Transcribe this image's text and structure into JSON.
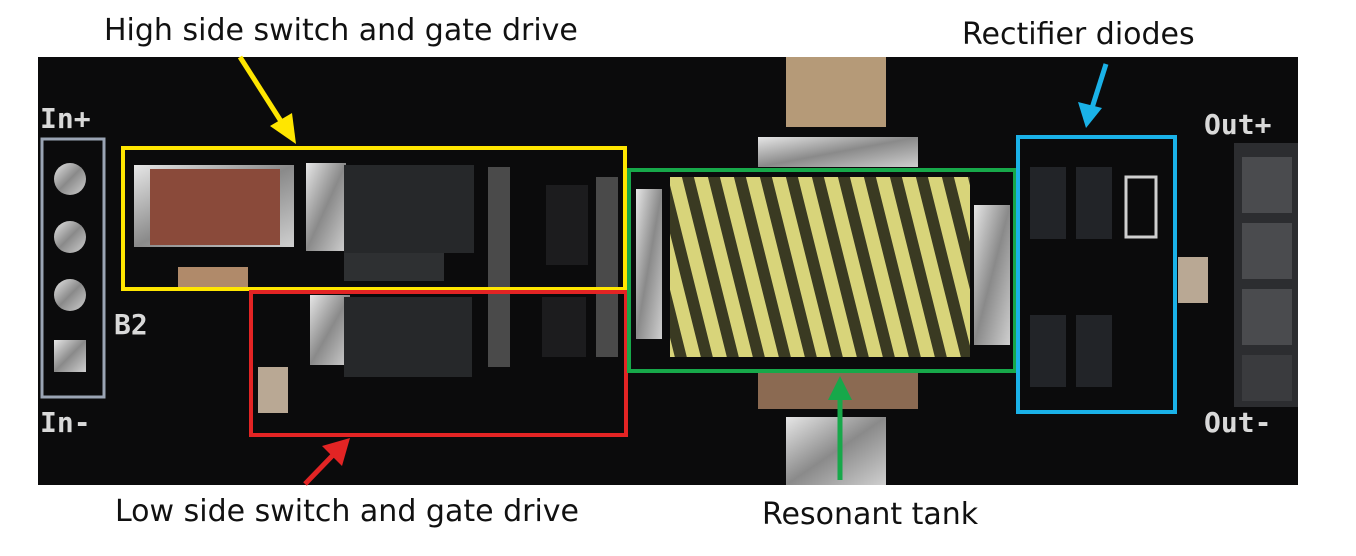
{
  "labels": {
    "high_side": "High side switch and gate drive",
    "low_side": "Low side switch and gate drive",
    "resonant_tank": "Resonant tank",
    "rectifier": "Rectifier diodes"
  },
  "silkscreen": {
    "in_plus": "In+",
    "in_minus": "In-",
    "out_plus": "Out+",
    "out_minus": "Out-",
    "b2": "B2"
  },
  "colors": {
    "high_side": "#ffe600",
    "low_side": "#e32424",
    "resonant_tank": "#17a84a",
    "rectifier": "#1ab2e8",
    "board": "#0b0b0c"
  }
}
